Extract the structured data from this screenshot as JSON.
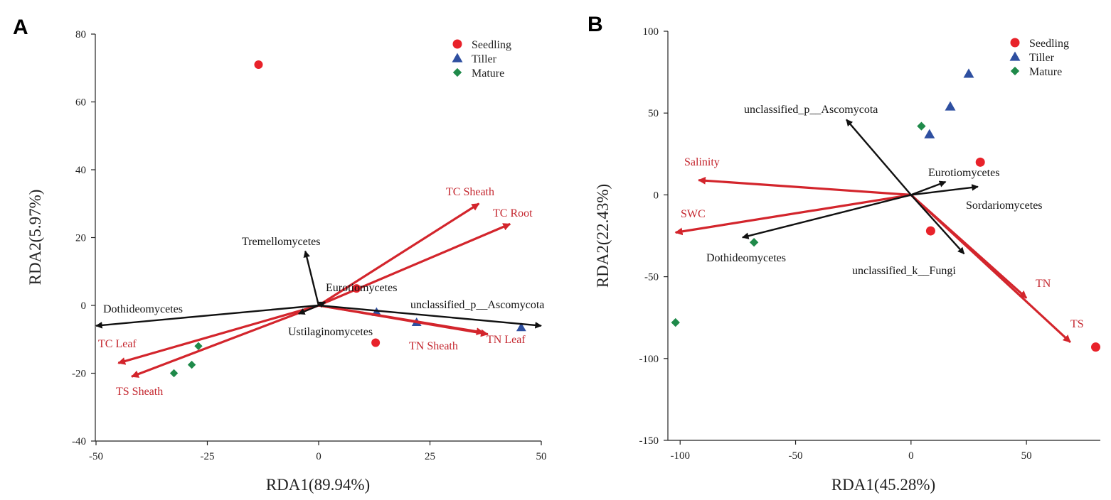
{
  "colors": {
    "seedling": "#e8222a",
    "tiller": "#2e4fa0",
    "mature": "#1f8a4a",
    "env_arrow": "#d3252c",
    "taxa_arrow": "#111111",
    "env_text": "#c4262e",
    "taxa_text": "#111111"
  },
  "legend": [
    {
      "name": "Seedling",
      "shape": "circle",
      "color_key": "seedling"
    },
    {
      "name": "Tiller",
      "shape": "triangle",
      "color_key": "tiller"
    },
    {
      "name": "Mature",
      "shape": "diamond",
      "color_key": "mature"
    }
  ],
  "chart_data": [
    {
      "type": "scatter",
      "panel_label": "A",
      "title": "",
      "xlabel": "RDA1(89.94%)",
      "ylabel": "RDA2(5.97%)",
      "xlim": [
        -50,
        50
      ],
      "ylim": [
        -40,
        80
      ],
      "xticks": [
        -50,
        -25,
        0,
        25,
        50
      ],
      "yticks": [
        -40,
        -20,
        0,
        20,
        40,
        60,
        80
      ],
      "legend_position": "top-right",
      "points": [
        {
          "group": "Seedling",
          "x": -13.5,
          "y": 71
        },
        {
          "group": "Seedling",
          "x": 8.5,
          "y": 5
        },
        {
          "group": "Seedling",
          "x": 12.8,
          "y": -11
        },
        {
          "group": "Tiller",
          "x": 13,
          "y": -2
        },
        {
          "group": "Tiller",
          "x": 22,
          "y": -5
        },
        {
          "group": "Tiller",
          "x": 45.5,
          "y": -6.5
        },
        {
          "group": "Mature",
          "x": -27,
          "y": -12
        },
        {
          "group": "Mature",
          "x": -28.5,
          "y": -17.5
        },
        {
          "group": "Mature",
          "x": -32.5,
          "y": -20
        }
      ],
      "env_vectors": [
        {
          "label": "TC Sheath",
          "x": 36,
          "y": 30
        },
        {
          "label": "TC Root",
          "x": 43,
          "y": 24
        },
        {
          "label": "TN Sheath",
          "x": 37,
          "y": -8
        },
        {
          "label": "TN Leaf",
          "x": 38,
          "y": -8.5
        },
        {
          "label": "TC Leaf",
          "x": -45,
          "y": -17
        },
        {
          "label": "TS Sheath",
          "x": -42,
          "y": -21
        }
      ],
      "taxa_vectors": [
        {
          "label": "Tremellomycetes",
          "x": -3,
          "y": 16
        },
        {
          "label": "Eurotiomycetes",
          "x": 1.5,
          "y": 1
        },
        {
          "label": "Dothideomycetes",
          "x": -50,
          "y": -6
        },
        {
          "label": "unclassified_p__Ascomycota",
          "x": 50,
          "y": -6
        },
        {
          "label": "Ustilaginomycetes",
          "x": -4.5,
          "y": -2.5
        }
      ]
    },
    {
      "type": "scatter",
      "panel_label": "B",
      "title": "",
      "xlabel": "RDA1(45.28%)",
      "ylabel": "RDA2(22.43%)",
      "xlim": [
        -105,
        82
      ],
      "ylim": [
        -150,
        100
      ],
      "xticks": [
        -100,
        -50,
        0,
        50
      ],
      "yticks": [
        -150,
        -100,
        -50,
        0,
        50,
        100
      ],
      "legend_position": "top-right",
      "points": [
        {
          "group": "Seedling",
          "x": 30,
          "y": 20
        },
        {
          "group": "Seedling",
          "x": 8.5,
          "y": -22
        },
        {
          "group": "Seedling",
          "x": 80,
          "y": -93
        },
        {
          "group": "Tiller",
          "x": 25,
          "y": 74
        },
        {
          "group": "Tiller",
          "x": 17,
          "y": 54
        },
        {
          "group": "Tiller",
          "x": 8,
          "y": 37
        },
        {
          "group": "Mature",
          "x": 4.5,
          "y": 42
        },
        {
          "group": "Mature",
          "x": -68,
          "y": -29
        },
        {
          "group": "Mature",
          "x": -102,
          "y": -78
        }
      ],
      "env_vectors": [
        {
          "label": "Salinity",
          "x": -92,
          "y": 9
        },
        {
          "label": "SWC",
          "x": -102,
          "y": -23
        },
        {
          "label": "TN",
          "x": 50,
          "y": -63
        },
        {
          "label": "TS",
          "x": 69,
          "y": -90
        }
      ],
      "taxa_vectors": [
        {
          "label": "unclassified_p__Ascomycota",
          "x": -28,
          "y": 46
        },
        {
          "label": "Eurotiomycetes",
          "x": 15,
          "y": 8
        },
        {
          "label": "Sordariomycetes",
          "x": 29,
          "y": 5
        },
        {
          "label": "Dothideomycetes",
          "x": -73,
          "y": -26
        },
        {
          "label": "unclassified_k__Fungi",
          "x": 23,
          "y": -36
        }
      ]
    }
  ]
}
